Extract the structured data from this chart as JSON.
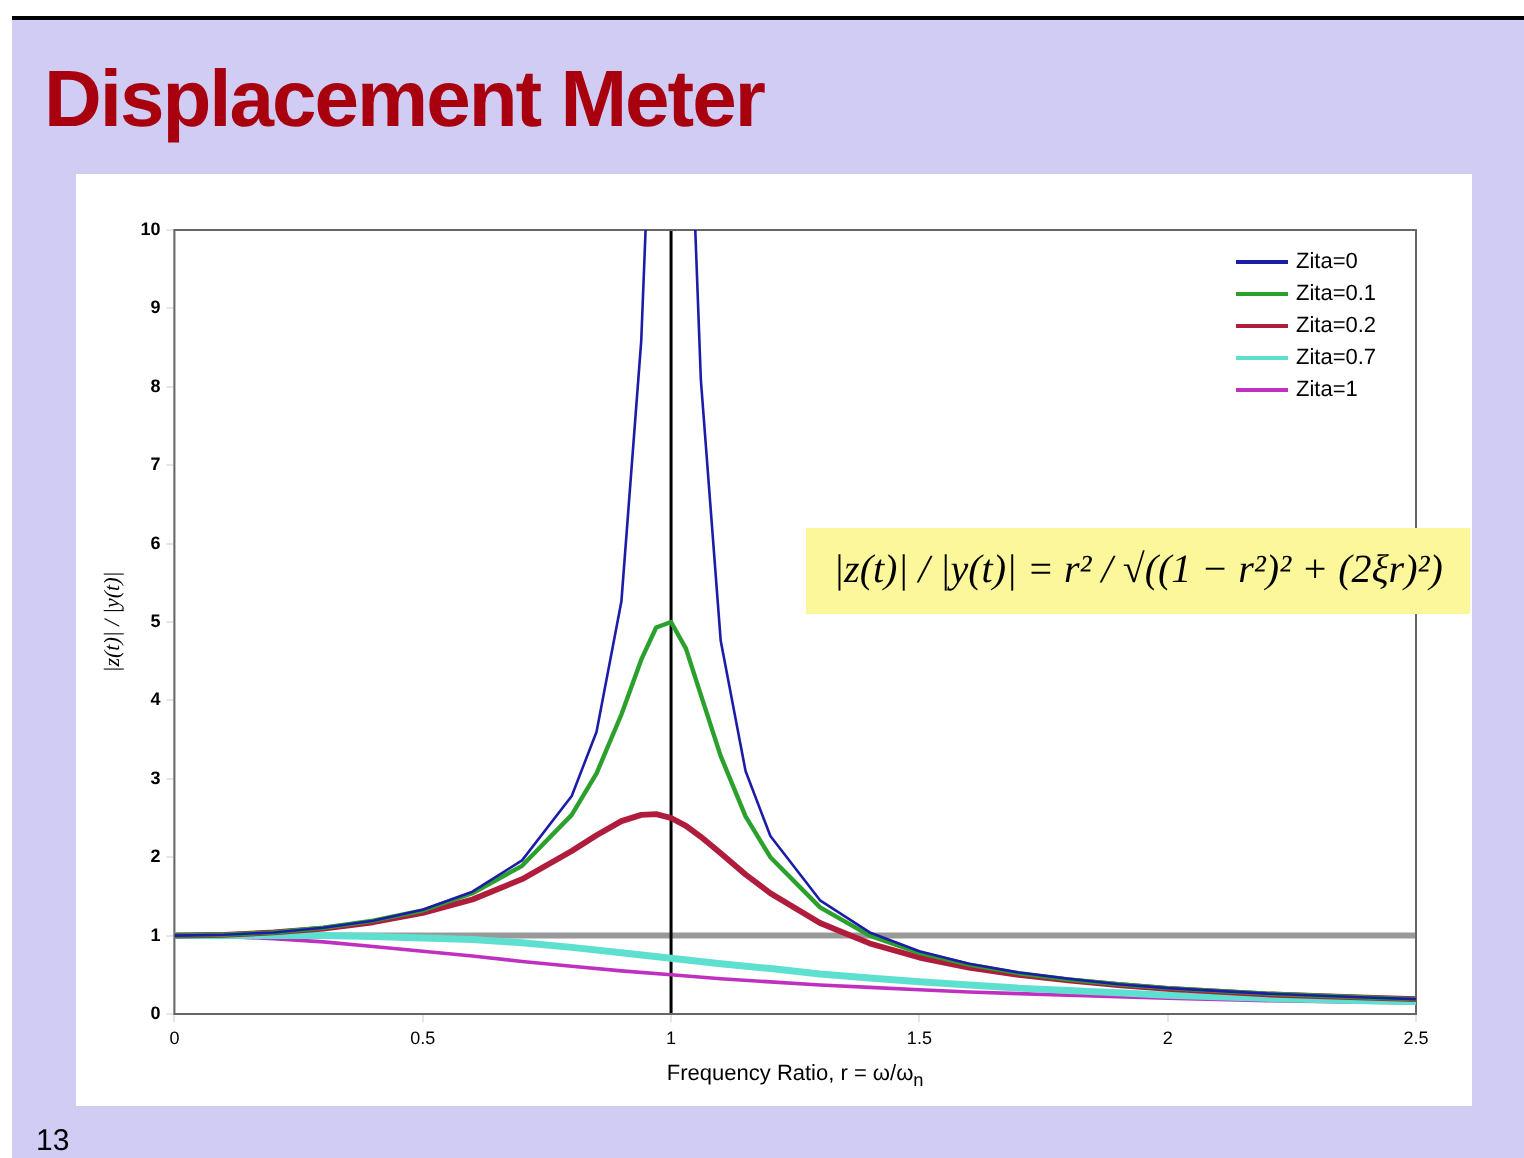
{
  "chart_data": {
    "type": "line",
    "title": "Displacement Meter",
    "xlabel": "Frequency Ratio, r = ω/ω$_{n}$",
    "ylabel": "|z(t)| / |y(t)|",
    "annotations": [
      "|z(t)| / |y(t)| = r² / √((1 − r²)² + (2ξr)²)",
      "13"
    ],
    "xlim": [
      0,
      2.5
    ],
    "xticks": [
      0,
      0.5,
      1,
      1.5,
      2,
      2.5
    ],
    "ylim": [
      0,
      10
    ],
    "yticks": [
      0,
      1,
      2,
      3,
      4,
      5,
      6,
      7,
      8,
      9,
      10
    ],
    "grid": false,
    "legend": "top right",
    "marker": "none",
    "line_style": "solid",
    "ref_lines": [
      {
        "axis": "y",
        "value": 1,
        "color": "#999999"
      },
      {
        "axis": "x",
        "value": 1,
        "color": "#000000"
      }
    ],
    "series": [
      {
        "name": "Zita=0",
        "color": "#1c1ca8",
        "x": [
          0,
          0.1,
          0.2,
          0.3,
          0.4,
          0.5,
          0.6,
          0.7,
          0.8,
          0.85,
          0.9,
          0.94,
          0.9487,
          1,
          1.0488,
          1.06,
          1.1,
          1.15,
          1.2,
          1.3,
          1.4,
          1.5,
          1.6,
          1.7,
          1.8,
          1.9,
          2,
          2.2,
          2.4,
          2.5
        ],
        "values": [
          1,
          1.01,
          1.04,
          1.1,
          1.19,
          1.33,
          1.56,
          1.96,
          2.78,
          3.6,
          5.26,
          8.59,
          10,
          null,
          10,
          8.09,
          4.76,
          3.1,
          2.27,
          1.45,
          1.04,
          0.8,
          0.64,
          0.53,
          0.45,
          0.38,
          0.33,
          0.26,
          0.21,
          0.19
        ]
      },
      {
        "name": "Zita=0.1",
        "color": "#2ca02c",
        "x": [
          0,
          0.1,
          0.2,
          0.3,
          0.4,
          0.5,
          0.6,
          0.7,
          0.8,
          0.85,
          0.9,
          0.94,
          0.97,
          1,
          1.03,
          1.06,
          1.1,
          1.15,
          1.2,
          1.3,
          1.4,
          1.5,
          1.6,
          1.7,
          1.8,
          1.9,
          2,
          2.2,
          2.4,
          2.5
        ],
        "values": [
          1,
          1.01,
          1.04,
          1.1,
          1.19,
          1.32,
          1.54,
          1.89,
          2.54,
          3.07,
          3.82,
          4.52,
          4.93,
          5,
          4.66,
          4.07,
          3.29,
          2.52,
          2,
          1.36,
          1,
          0.78,
          0.63,
          0.52,
          0.44,
          0.38,
          0.33,
          0.26,
          0.21,
          0.19
        ]
      },
      {
        "name": "Zita=0.2",
        "color": "#b01c3c",
        "x": [
          0,
          0.1,
          0.2,
          0.3,
          0.4,
          0.5,
          0.6,
          0.7,
          0.8,
          0.85,
          0.9,
          0.94,
          0.97,
          1,
          1.03,
          1.06,
          1.1,
          1.15,
          1.2,
          1.3,
          1.4,
          1.5,
          1.6,
          1.7,
          1.8,
          1.9,
          2,
          2.2,
          2.4,
          2.5
        ],
        "values": [
          1,
          1.01,
          1.04,
          1.09,
          1.17,
          1.29,
          1.46,
          1.72,
          2.08,
          2.28,
          2.46,
          2.54,
          2.55,
          2.5,
          2.4,
          2.26,
          2.05,
          1.78,
          1.54,
          1.16,
          0.9,
          0.72,
          0.59,
          0.5,
          0.43,
          0.37,
          0.32,
          0.25,
          0.21,
          0.19
        ]
      },
      {
        "name": "Zita=0.7",
        "color": "#5ee0d0",
        "x": [
          0,
          0.1,
          0.2,
          0.3,
          0.4,
          0.5,
          0.6,
          0.7,
          0.8,
          0.9,
          1,
          1.1,
          1.2,
          1.3,
          1.4,
          1.5,
          1.6,
          1.7,
          1.8,
          1.9,
          2,
          2.2,
          2.4,
          2.5
        ],
        "values": [
          1,
          1,
          1,
          1,
          0.99,
          0.97,
          0.95,
          0.91,
          0.85,
          0.78,
          0.71,
          0.64,
          0.58,
          0.51,
          0.46,
          0.41,
          0.37,
          0.33,
          0.3,
          0.27,
          0.24,
          0.2,
          0.17,
          0.16
        ]
      },
      {
        "name": "Zita=1",
        "color": "#c030c0",
        "x": [
          0,
          0.1,
          0.2,
          0.3,
          0.4,
          0.5,
          0.6,
          0.7,
          0.8,
          0.9,
          1,
          1.1,
          1.2,
          1.3,
          1.4,
          1.5,
          1.6,
          1.7,
          1.8,
          1.9,
          2,
          2.2,
          2.4,
          2.5
        ],
        "values": [
          1,
          0.99,
          0.96,
          0.92,
          0.86,
          0.8,
          0.74,
          0.67,
          0.61,
          0.55,
          0.5,
          0.45,
          0.41,
          0.37,
          0.34,
          0.31,
          0.28,
          0.26,
          0.24,
          0.22,
          0.2,
          0.17,
          0.15,
          0.14
        ]
      }
    ]
  }
}
